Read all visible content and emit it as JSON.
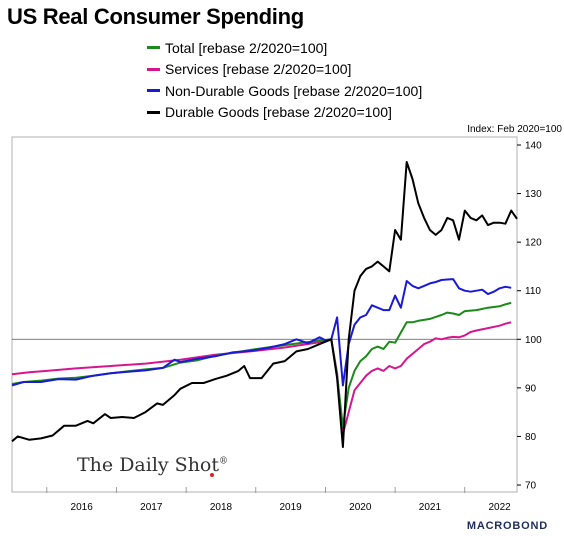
{
  "chart_data": {
    "type": "line",
    "title": "US Real Consumer Spending",
    "unit_label": "Index: Feb 2020=100",
    "y_axis": {
      "position": "right",
      "range": [
        70,
        140
      ],
      "ticks": [
        "70",
        "80",
        "90",
        "100",
        "110",
        "120",
        "130",
        "140"
      ]
    },
    "x_axis": {
      "range": [
        "2015-07",
        "2022-10"
      ],
      "ticks": [
        "2016",
        "2017",
        "2018",
        "2019",
        "2020",
        "2021",
        "2022"
      ]
    },
    "reference_line": 100,
    "grid": false,
    "legend_position": "top",
    "series": [
      {
        "name": "Total [rebase 2/2020=100]",
        "color": "#1a8a1a",
        "points": [
          [
            "2015-07",
            90.8
          ],
          [
            "2015-09",
            91.2
          ],
          [
            "2015-12",
            91.5
          ],
          [
            "2016-03",
            91.9
          ],
          [
            "2016-06",
            92.1
          ],
          [
            "2016-09",
            92.5
          ],
          [
            "2016-12",
            93.0
          ],
          [
            "2017-03",
            93.4
          ],
          [
            "2017-06",
            93.8
          ],
          [
            "2017-09",
            94.1
          ],
          [
            "2017-12",
            95.2
          ],
          [
            "2018-03",
            95.7
          ],
          [
            "2018-06",
            96.6
          ],
          [
            "2018-09",
            97.2
          ],
          [
            "2018-12",
            97.8
          ],
          [
            "2019-03",
            98.3
          ],
          [
            "2019-06",
            98.8
          ],
          [
            "2019-09",
            99.3
          ],
          [
            "2019-12",
            99.7
          ],
          [
            "2020-02",
            100.0
          ],
          [
            "2020-03",
            92.5
          ],
          [
            "2020-04",
            82.0
          ],
          [
            "2020-05",
            90.0
          ],
          [
            "2020-06",
            93.5
          ],
          [
            "2020-07",
            95.5
          ],
          [
            "2020-08",
            96.5
          ],
          [
            "2020-09",
            98.0
          ],
          [
            "2020-10",
            98.5
          ],
          [
            "2020-11",
            98.0
          ],
          [
            "2020-12",
            99.5
          ],
          [
            "2021-01",
            99.3
          ],
          [
            "2021-03",
            103.5
          ],
          [
            "2021-04",
            103.5
          ],
          [
            "2021-05",
            103.8
          ],
          [
            "2021-06",
            104.0
          ],
          [
            "2021-07",
            104.2
          ],
          [
            "2021-08",
            104.6
          ],
          [
            "2021-09",
            105.0
          ],
          [
            "2021-10",
            105.5
          ],
          [
            "2021-11",
            105.3
          ],
          [
            "2021-12",
            105.0
          ],
          [
            "2022-01",
            105.8
          ],
          [
            "2022-03",
            106.0
          ],
          [
            "2022-05",
            106.5
          ],
          [
            "2022-07",
            106.8
          ],
          [
            "2022-08",
            107.2
          ],
          [
            "2022-09",
            107.5
          ]
        ]
      },
      {
        "name": "Services [rebase 2/2020=100]",
        "color": "#d6168f",
        "points": [
          [
            "2015-07",
            92.8
          ],
          [
            "2015-10",
            93.2
          ],
          [
            "2016-01",
            93.5
          ],
          [
            "2016-06",
            94.0
          ],
          [
            "2016-12",
            94.5
          ],
          [
            "2017-06",
            95.0
          ],
          [
            "2017-12",
            95.8
          ],
          [
            "2018-06",
            96.8
          ],
          [
            "2018-12",
            97.5
          ],
          [
            "2019-06",
            98.3
          ],
          [
            "2019-12",
            99.4
          ],
          [
            "2020-02",
            100.0
          ],
          [
            "2020-03",
            93.0
          ],
          [
            "2020-04",
            80.5
          ],
          [
            "2020-05",
            85.0
          ],
          [
            "2020-06",
            89.5
          ],
          [
            "2020-07",
            91.0
          ],
          [
            "2020-08",
            92.5
          ],
          [
            "2020-09",
            93.5
          ],
          [
            "2020-10",
            94.0
          ],
          [
            "2020-11",
            93.5
          ],
          [
            "2020-12",
            94.5
          ],
          [
            "2021-01",
            94.0
          ],
          [
            "2021-02",
            94.5
          ],
          [
            "2021-03",
            96.0
          ],
          [
            "2021-04",
            97.0
          ],
          [
            "2021-05",
            98.0
          ],
          [
            "2021-06",
            99.0
          ],
          [
            "2021-07",
            99.5
          ],
          [
            "2021-08",
            100.2
          ],
          [
            "2021-09",
            100.0
          ],
          [
            "2021-10",
            100.3
          ],
          [
            "2021-11",
            100.5
          ],
          [
            "2021-12",
            100.4
          ],
          [
            "2022-01",
            100.8
          ],
          [
            "2022-02",
            101.5
          ],
          [
            "2022-03",
            101.8
          ],
          [
            "2022-05",
            102.3
          ],
          [
            "2022-07",
            102.8
          ],
          [
            "2022-08",
            103.2
          ],
          [
            "2022-09",
            103.5
          ]
        ]
      },
      {
        "name": "Non-Durable Goods [rebase 2/2020=100]",
        "color": "#1a1ad6",
        "points": [
          [
            "2015-07",
            90.5
          ],
          [
            "2015-09",
            91.2
          ],
          [
            "2015-12",
            91.2
          ],
          [
            "2016-03",
            91.8
          ],
          [
            "2016-06",
            91.7
          ],
          [
            "2016-09",
            92.5
          ],
          [
            "2016-12",
            93.0
          ],
          [
            "2017-03",
            93.3
          ],
          [
            "2017-06",
            93.6
          ],
          [
            "2017-09",
            94.1
          ],
          [
            "2017-11",
            95.8
          ],
          [
            "2017-12",
            95.3
          ],
          [
            "2018-03",
            96.0
          ],
          [
            "2018-06",
            96.5
          ],
          [
            "2018-09",
            97.3
          ],
          [
            "2018-12",
            97.6
          ],
          [
            "2019-03",
            98.2
          ],
          [
            "2019-06",
            99.0
          ],
          [
            "2019-08",
            100.0
          ],
          [
            "2019-10",
            99.2
          ],
          [
            "2019-12",
            100.4
          ],
          [
            "2020-01",
            99.8
          ],
          [
            "2020-02",
            100.0
          ],
          [
            "2020-03",
            104.5
          ],
          [
            "2020-04",
            90.5
          ],
          [
            "2020-05",
            99.0
          ],
          [
            "2020-06",
            103.0
          ],
          [
            "2020-07",
            104.5
          ],
          [
            "2020-08",
            105.0
          ],
          [
            "2020-09",
            107.0
          ],
          [
            "2020-10",
            106.5
          ],
          [
            "2020-11",
            106.0
          ],
          [
            "2020-12",
            106.0
          ],
          [
            "2021-01",
            109.0
          ],
          [
            "2021-02",
            106.5
          ],
          [
            "2021-03",
            112.0
          ],
          [
            "2021-04",
            111.0
          ],
          [
            "2021-05",
            110.5
          ],
          [
            "2021-06",
            111.0
          ],
          [
            "2021-07",
            111.5
          ],
          [
            "2021-08",
            111.8
          ],
          [
            "2021-09",
            112.2
          ],
          [
            "2021-10",
            112.3
          ],
          [
            "2021-11",
            112.4
          ],
          [
            "2021-12",
            110.5
          ],
          [
            "2022-01",
            110.0
          ],
          [
            "2022-02",
            109.8
          ],
          [
            "2022-03",
            110.0
          ],
          [
            "2022-04",
            110.2
          ],
          [
            "2022-05",
            109.3
          ],
          [
            "2022-06",
            109.8
          ],
          [
            "2022-07",
            110.5
          ],
          [
            "2022-08",
            110.8
          ],
          [
            "2022-09",
            110.6
          ]
        ]
      },
      {
        "name": "Durable Goods [rebase 2/2020=100]",
        "color": "#000000",
        "points": [
          [
            "2015-07",
            79.0
          ],
          [
            "2015-08",
            80.0
          ],
          [
            "2015-10",
            79.3
          ],
          [
            "2015-12",
            79.6
          ],
          [
            "2016-02",
            80.2
          ],
          [
            "2016-04",
            82.2
          ],
          [
            "2016-06",
            82.2
          ],
          [
            "2016-08",
            83.2
          ],
          [
            "2016-09",
            82.7
          ],
          [
            "2016-11",
            84.6
          ],
          [
            "2016-12",
            83.8
          ],
          [
            "2017-02",
            84.0
          ],
          [
            "2017-04",
            83.8
          ],
          [
            "2017-06",
            85.0
          ],
          [
            "2017-08",
            86.8
          ],
          [
            "2017-09",
            86.5
          ],
          [
            "2017-11",
            88.5
          ],
          [
            "2017-12",
            89.8
          ],
          [
            "2018-02",
            91.0
          ],
          [
            "2018-04",
            91.0
          ],
          [
            "2018-06",
            91.8
          ],
          [
            "2018-08",
            92.5
          ],
          [
            "2018-10",
            93.5
          ],
          [
            "2018-11",
            94.5
          ],
          [
            "2018-12",
            92.0
          ],
          [
            "2019-02",
            92.0
          ],
          [
            "2019-04",
            95.0
          ],
          [
            "2019-06",
            95.5
          ],
          [
            "2019-08",
            97.5
          ],
          [
            "2019-10",
            98.0
          ],
          [
            "2019-12",
            99.0
          ],
          [
            "2020-02",
            100.0
          ],
          [
            "2020-03",
            92.0
          ],
          [
            "2020-04",
            77.8
          ],
          [
            "2020-05",
            100.0
          ],
          [
            "2020-06",
            110.0
          ],
          [
            "2020-07",
            113.0
          ],
          [
            "2020-08",
            114.5
          ],
          [
            "2020-09",
            115.0
          ],
          [
            "2020-10",
            116.0
          ],
          [
            "2020-11",
            115.0
          ],
          [
            "2020-12",
            114.0
          ],
          [
            "2021-01",
            122.5
          ],
          [
            "2021-02",
            120.5
          ],
          [
            "2021-03",
            136.5
          ],
          [
            "2021-04",
            133.0
          ],
          [
            "2021-05",
            128.0
          ],
          [
            "2021-06",
            125.0
          ],
          [
            "2021-07",
            122.5
          ],
          [
            "2021-08",
            121.5
          ],
          [
            "2021-09",
            122.5
          ],
          [
            "2021-10",
            125.0
          ],
          [
            "2021-11",
            124.5
          ],
          [
            "2021-12",
            120.5
          ],
          [
            "2022-01",
            126.5
          ],
          [
            "2022-02",
            125.0
          ],
          [
            "2022-03",
            124.5
          ],
          [
            "2022-04",
            125.5
          ],
          [
            "2022-05",
            123.5
          ],
          [
            "2022-06",
            124.0
          ],
          [
            "2022-07",
            124.0
          ],
          [
            "2022-08",
            123.8
          ],
          [
            "2022-09",
            126.5
          ],
          [
            "2022-10",
            124.8
          ]
        ]
      }
    ]
  },
  "watermark": "The Daily Shot",
  "watermark_mark": "®",
  "brand": "MACROBOND"
}
